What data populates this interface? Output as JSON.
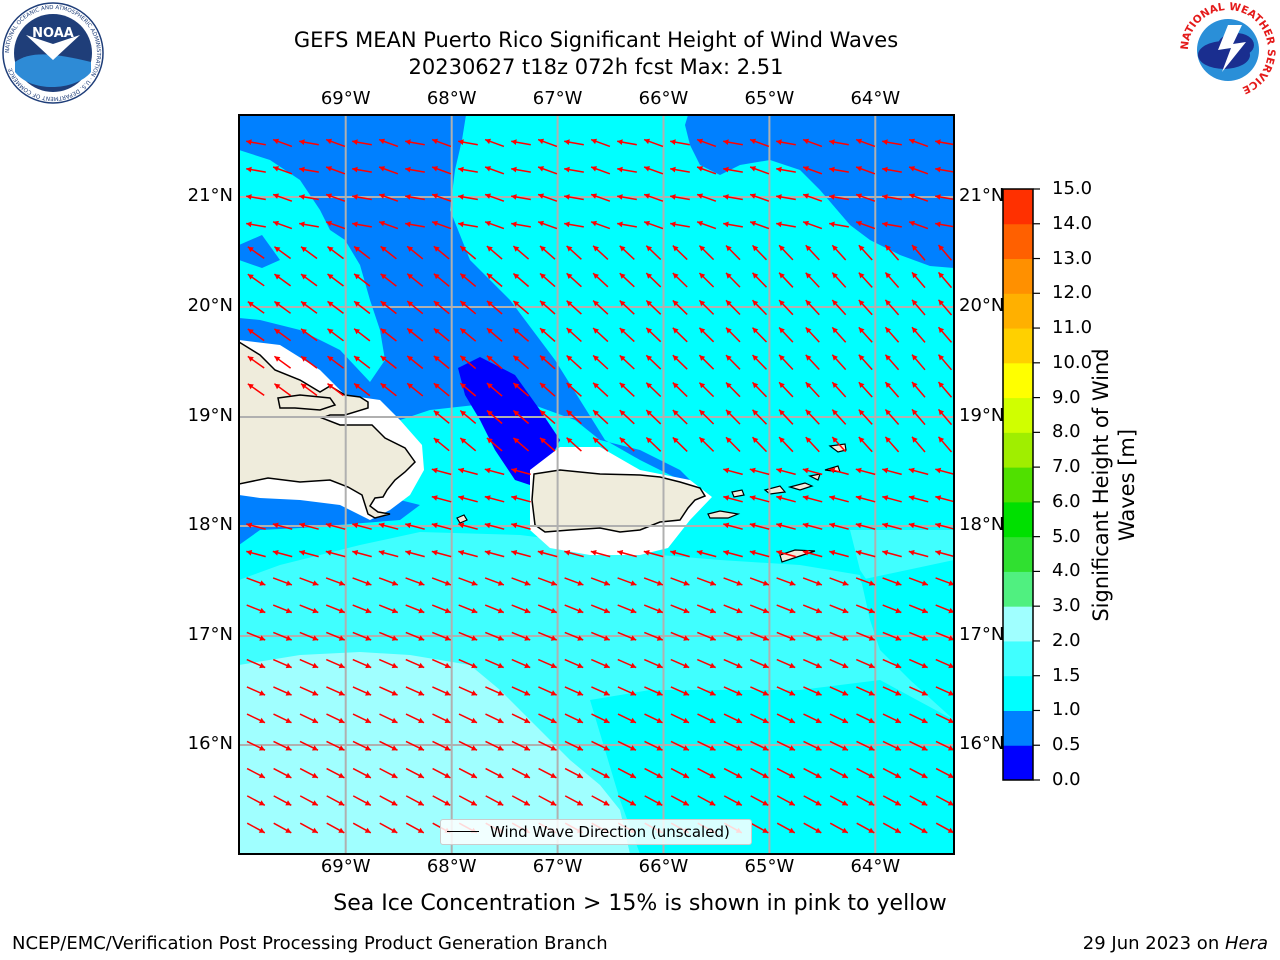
{
  "header": {
    "title_line1": "GEFS MEAN Puerto Rico Significant Height of Wind Waves",
    "title_line2": "20230627 t18z 072h fcst   Max: 2.51"
  },
  "logos": {
    "noaa": {
      "text": "NOAA",
      "ring_text": "NATIONAL OCEANIC AND ATMOSPHERIC ADMINISTRATION · U.S. DEPARTMENT OF COMMERCE"
    },
    "nws": {
      "ring_text": "NATIONAL WEATHER SERVICE"
    }
  },
  "map": {
    "lon_labels": [
      "69°W",
      "68°W",
      "67°W",
      "66°W",
      "65°W",
      "64°W"
    ],
    "lat_labels": [
      "21°N",
      "20°N",
      "19°N",
      "18°N",
      "17°N",
      "16°N"
    ],
    "extent": {
      "lon_min": -70.0,
      "lon_max": -63.25,
      "lat_min": 15.0,
      "lat_max": 21.75
    },
    "arrow_color": "#ff0000",
    "land_color": "#efecdc",
    "gridline_color": "#b0b0b0",
    "legend_label": "Wind Wave Direction (unscaled)"
  },
  "colorbar": {
    "title": "Significant Height of Wind Waves [m]",
    "levels": [
      "0.0",
      "0.5",
      "1.0",
      "1.5",
      "2.0",
      "3.0",
      "4.0",
      "5.0",
      "6.0",
      "7.0",
      "8.0",
      "9.0",
      "10.0",
      "11.0",
      "12.0",
      "13.0",
      "14.0",
      "15.0"
    ],
    "colors": [
      "#0000ff",
      "#0080ff",
      "#00ffff",
      "#40ffff",
      "#a0ffff",
      "#50f080",
      "#30e030",
      "#00e000",
      "#50e000",
      "#a0ee00",
      "#d0ff00",
      "#ffff00",
      "#ffd000",
      "#ffb000",
      "#ff9000",
      "#ff6000",
      "#ff3000",
      "#ff0000"
    ]
  },
  "notes": {
    "ice": "Sea Ice Concentration > 15% is shown in pink to yellow",
    "footer_left": "NCEP/EMC/Verification Post Processing Product Generation Branch",
    "footer_date": "29 Jun 2023 on ",
    "footer_host": "Hera"
  }
}
